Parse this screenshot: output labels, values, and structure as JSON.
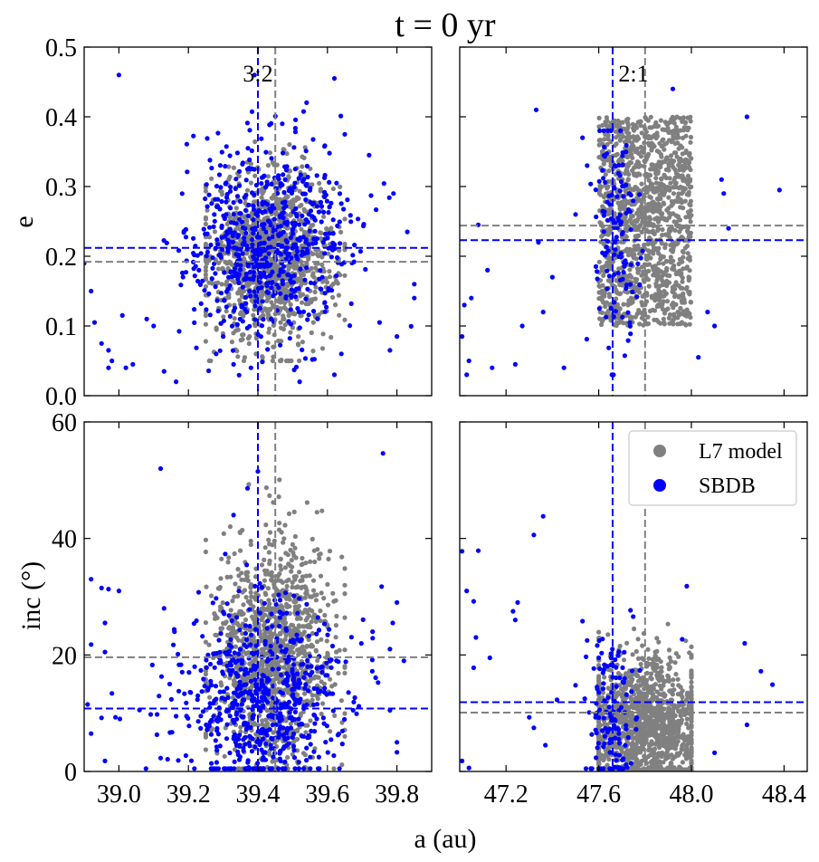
{
  "figure": {
    "title": "t = 0 yr",
    "xlabel": "a (au)",
    "legend": {
      "position": "top-right of lower-right panel",
      "entries": [
        {
          "label": "L7 model",
          "color": "#808080"
        },
        {
          "label": "SBDB",
          "color": "#0000ff"
        }
      ]
    }
  },
  "chart_data": [
    {
      "id": "e_32",
      "type": "scatter",
      "resonance": "3:2",
      "xlim": [
        38.9,
        39.9
      ],
      "ylim": [
        0,
        0.5
      ],
      "xticks": [
        39.0,
        39.2,
        39.4,
        39.6,
        39.8
      ],
      "show_xticklabels": false,
      "yticks": [
        0.0,
        0.1,
        0.2,
        0.3,
        0.4,
        0.5
      ],
      "yticklabels": [
        "0.0",
        "0.1",
        "0.2",
        "0.3",
        "0.4",
        "0.5"
      ],
      "ylabel": "e",
      "resonance_a": {
        "SBDB": 39.4,
        "L7 model": 39.45
      },
      "hlines": {
        "SBDB": 0.212,
        "L7 model": 0.192
      },
      "series": [
        {
          "name": "L7 model",
          "color": "#808080",
          "n": 1200,
          "a_range": [
            39.25,
            39.65
          ],
          "center": [
            39.44,
            0.2
          ],
          "spread": [
            0.09,
            0.06
          ],
          "yclip": [
            0.05,
            0.38
          ]
        },
        {
          "name": "SBDB",
          "color": "#0000ff",
          "n": 650,
          "center": [
            39.42,
            0.22
          ],
          "spread": [
            0.12,
            0.07
          ],
          "yclip": [
            0.02,
            0.46
          ],
          "points": [
            [
              39.0,
              0.46
            ],
            [
              39.62,
              0.455
            ],
            [
              38.9,
              0.19
            ],
            [
              38.92,
              0.15
            ],
            [
              38.93,
              0.105
            ],
            [
              38.95,
              0.075
            ],
            [
              38.97,
              0.065
            ],
            [
              38.98,
              0.05
            ],
            [
              38.97,
              0.04
            ],
            [
              39.02,
              0.04
            ],
            [
              39.04,
              0.045
            ],
            [
              39.01,
              0.115
            ],
            [
              39.08,
              0.11
            ],
            [
              39.1,
              0.1
            ],
            [
              39.13,
              0.035
            ],
            [
              39.72,
              0.345
            ],
            [
              39.79,
              0.29
            ],
            [
              39.83,
              0.235
            ],
            [
              39.85,
              0.16
            ],
            [
              39.75,
              0.105
            ],
            [
              39.8,
              0.085
            ],
            [
              39.78,
              0.065
            ],
            [
              39.62,
              0.03
            ],
            [
              39.52,
              0.02
            ],
            [
              39.65,
              0.375
            ],
            [
              39.47,
              0.39
            ],
            [
              39.3,
              0.085
            ],
            [
              39.38,
              0.04
            ],
            [
              39.28,
              0.06
            ],
            [
              39.33,
              0.045
            ],
            [
              39.64,
              0.06
            ],
            [
              39.85,
              0.14
            ]
          ]
        }
      ]
    },
    {
      "id": "e_21",
      "type": "scatter",
      "resonance": "2:1",
      "xlim": [
        47.0,
        48.5
      ],
      "ylim": [
        0,
        0.5
      ],
      "xticks": [
        47.2,
        47.6,
        48.0,
        48.4
      ],
      "show_xticklabels": false,
      "yticks": [
        0.0,
        0.1,
        0.2,
        0.3,
        0.4,
        0.5
      ],
      "show_yticklabels": false,
      "resonance_a": {
        "SBDB": 47.66,
        "L7 model": 47.8
      },
      "hlines": {
        "SBDB": 0.223,
        "L7 model": 0.244
      },
      "series": [
        {
          "name": "L7 model",
          "color": "#808080",
          "n": 1300,
          "a_range": [
            47.6,
            48.0
          ],
          "e_range": [
            0.1,
            0.4
          ],
          "distribution": "uniform"
        },
        {
          "name": "SBDB",
          "color": "#0000ff",
          "n": 120,
          "center": [
            47.68,
            0.24
          ],
          "spread": [
            0.05,
            0.09
          ],
          "yclip": [
            0.03,
            0.38
          ],
          "points": [
            [
              47.33,
              0.41
            ],
            [
              47.92,
              0.44
            ],
            [
              48.24,
              0.4
            ],
            [
              48.38,
              0.295
            ],
            [
              48.14,
              0.29
            ],
            [
              48.13,
              0.31
            ],
            [
              47.08,
              0.245
            ],
            [
              47.05,
              0.14
            ],
            [
              47.02,
              0.13
            ],
            [
              47.01,
              0.085
            ],
            [
              47.04,
              0.05
            ],
            [
              47.03,
              0.03
            ],
            [
              47.14,
              0.04
            ],
            [
              47.24,
              0.045
            ],
            [
              47.45,
              0.04
            ],
            [
              47.27,
              0.1
            ],
            [
              47.36,
              0.12
            ],
            [
              47.34,
              0.22
            ],
            [
              47.5,
              0.26
            ],
            [
              47.53,
              0.37
            ],
            [
              47.55,
              0.33
            ],
            [
              48.16,
              0.24
            ],
            [
              48.07,
              0.12
            ],
            [
              48.1,
              0.1
            ],
            [
              48.03,
              0.055
            ],
            [
              47.4,
              0.17
            ],
            [
              47.12,
              0.18
            ]
          ]
        }
      ]
    },
    {
      "id": "inc_32",
      "type": "scatter",
      "resonance": "3:2",
      "xlim": [
        38.9,
        39.9
      ],
      "ylim": [
        0,
        60
      ],
      "xticks": [
        39.0,
        39.2,
        39.4,
        39.6,
        39.8
      ],
      "xticklabels": [
        "39.0",
        "39.2",
        "39.4",
        "39.6",
        "39.8"
      ],
      "yticks": [
        0,
        20,
        40,
        60
      ],
      "yticklabels": [
        "0",
        "20",
        "40",
        "60"
      ],
      "ylabel": "inc (°)",
      "resonance_a": {
        "SBDB": 39.4,
        "L7 model": 39.45
      },
      "hlines": {
        "SBDB": 10.8,
        "L7 model": 19.6
      },
      "series": [
        {
          "name": "L7 model",
          "color": "#808080",
          "n": 1200,
          "a_range": [
            39.25,
            39.65
          ],
          "center": [
            39.44,
            20
          ],
          "spread": [
            0.09,
            10
          ],
          "yclip": [
            0.5,
            59
          ]
        },
        {
          "name": "SBDB",
          "color": "#0000ff",
          "n": 650,
          "center": [
            39.42,
            12
          ],
          "spread": [
            0.12,
            8
          ],
          "yclip": [
            0.5,
            52
          ],
          "points": [
            [
              39.12,
              52
            ],
            [
              39.76,
              54.6
            ],
            [
              38.92,
              33
            ],
            [
              38.95,
              31.5
            ],
            [
              38.97,
              31.3
            ],
            [
              39.0,
              31
            ],
            [
              38.96,
              25.5
            ],
            [
              38.92,
              21.8
            ],
            [
              38.96,
              20.5
            ],
            [
              38.98,
              13.4
            ],
            [
              38.91,
              11.5
            ],
            [
              38.92,
              6.5
            ],
            [
              38.95,
              9.2
            ],
            [
              38.99,
              9.3
            ],
            [
              38.96,
              1.8
            ],
            [
              39.8,
              29
            ],
            [
              39.73,
              24
            ],
            [
              39.78,
              21
            ],
            [
              39.82,
              19
            ],
            [
              39.78,
              10.5
            ],
            [
              39.8,
              3.3
            ],
            [
              39.8,
              5
            ],
            [
              39.13,
              28
            ],
            [
              39.16,
              24
            ],
            [
              39.11,
              9.8
            ],
            [
              39.14,
              2.1
            ],
            [
              39.12,
              2.3
            ],
            [
              39.4,
              51.5
            ],
            [
              39.37,
              48.6
            ],
            [
              39.33,
              44
            ]
          ]
        }
      ]
    },
    {
      "id": "inc_21",
      "type": "scatter",
      "resonance": "2:1",
      "xlim": [
        47.0,
        48.5
      ],
      "ylim": [
        0,
        60
      ],
      "xticks": [
        47.2,
        47.6,
        48.0,
        48.4
      ],
      "xticklabels": [
        "47.2",
        "47.6",
        "48.0",
        "48.4"
      ],
      "yticks": [
        0,
        20,
        40,
        60
      ],
      "show_yticklabels": false,
      "resonance_a": {
        "SBDB": 47.66,
        "L7 model": 47.8
      },
      "hlines": {
        "SBDB": 11.9,
        "L7 model": 10.1
      },
      "series": [
        {
          "name": "L7 model",
          "color": "#808080",
          "n": 1300,
          "a_range": [
            47.6,
            48.0
          ],
          "center": [
            47.8,
            8
          ],
          "spread": [
            0.13,
            6
          ],
          "yclip": [
            0.3,
            33
          ]
        },
        {
          "name": "SBDB",
          "color": "#0000ff",
          "n": 120,
          "center": [
            47.66,
            10
          ],
          "spread": [
            0.05,
            7
          ],
          "yclip": [
            0.5,
            30
          ],
          "points": [
            [
              47.36,
              43.8
            ],
            [
              47.32,
              40.6
            ],
            [
              47.01,
              37.8
            ],
            [
              47.08,
              37.9
            ],
            [
              47.03,
              31
            ],
            [
              47.06,
              29.2
            ],
            [
              47.25,
              29
            ],
            [
              47.23,
              27.5
            ],
            [
              47.24,
              26
            ],
            [
              47.07,
              23
            ],
            [
              47.06,
              17.8
            ],
            [
              47.13,
              19.5
            ],
            [
              47.01,
              1.8
            ],
            [
              47.04,
              0.6
            ],
            [
              47.3,
              9.3
            ],
            [
              47.32,
              7.5
            ],
            [
              47.37,
              4.5
            ],
            [
              47.42,
              12.3
            ],
            [
              47.54,
              12.5
            ],
            [
              47.5,
              14.8
            ],
            [
              48.35,
              14.9
            ],
            [
              48.3,
              17.2
            ],
            [
              48.23,
              22
            ],
            [
              48.24,
              8
            ],
            [
              48.1,
              3.2
            ],
            [
              47.96,
              22.7
            ],
            [
              47.98,
              31.8
            ],
            [
              47.53,
              25.8
            ],
            [
              47.55,
              22.5
            ],
            [
              47.6,
              19.5
            ]
          ]
        }
      ]
    }
  ]
}
